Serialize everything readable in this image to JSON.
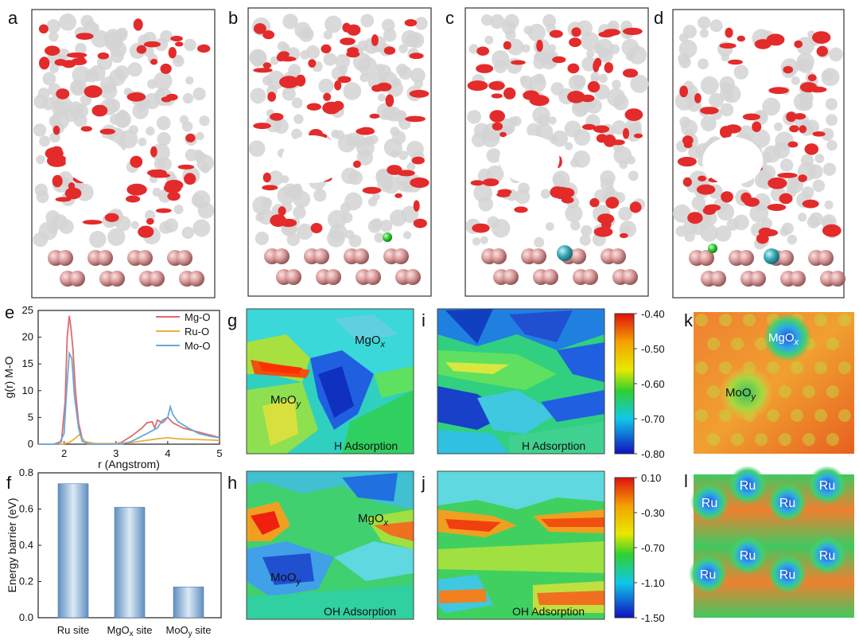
{
  "panel_labels": {
    "a": "a",
    "b": "b",
    "c": "c",
    "d": "d",
    "e": "e",
    "f": "f",
    "g": "g",
    "h": "h",
    "i": "i",
    "j": "j",
    "k": "k",
    "l": "l"
  },
  "colors": {
    "mgo": "#e06a6a",
    "ruo": "#e8b040",
    "moo": "#6aa8d8",
    "bar": "#8fb3d6",
    "red_cluster": "#e32b2b",
    "grey_cluster": "#d8d8d8",
    "ru_atom": "#d99a9a",
    "teal_atom": "#3aa8b8",
    "green_atom": "#33cc33"
  },
  "chart_data": [
    {
      "type": "line",
      "panel": "e",
      "title": "",
      "xlabel": "r (Angstrom)",
      "ylabel": "g(r) M-O",
      "xlim": [
        1.5,
        5
      ],
      "ylim": [
        0,
        25
      ],
      "xticks": [
        "2",
        "3",
        "4",
        "5"
      ],
      "yticks": [
        "0",
        "5",
        "10",
        "15",
        "20",
        "25"
      ],
      "legend_position": "top-right",
      "series": [
        {
          "name": "Mg-O",
          "x": [
            1.5,
            1.8,
            1.95,
            2.02,
            2.06,
            2.1,
            2.13,
            2.17,
            2.22,
            2.28,
            2.35,
            2.45,
            2.6,
            2.9,
            3.1,
            3.3,
            3.5,
            3.6,
            3.7,
            3.75,
            3.8,
            3.9,
            4.0,
            4.1,
            4.2,
            4.3,
            4.5,
            4.7,
            4.9,
            5.0
          ],
          "y": [
            0,
            0,
            0.5,
            8,
            20,
            24,
            22,
            18,
            10,
            4,
            1,
            0,
            0,
            0,
            0.3,
            1.5,
            3,
            4,
            4.2,
            3,
            4.5,
            4.0,
            5.0,
            4.0,
            3.5,
            3,
            2.5,
            2,
            1.5,
            1.2
          ]
        },
        {
          "name": "Ru-O",
          "x": [
            1.5,
            1.9,
            2.0,
            2.1,
            2.2,
            2.3,
            2.4,
            2.6,
            3.0,
            3.3,
            3.5,
            3.8,
            4.0,
            4.2,
            4.5,
            4.8,
            5.0
          ],
          "y": [
            0,
            0,
            0.1,
            0.3,
            1,
            1.8,
            0.5,
            0.1,
            0.1,
            0.3,
            0.6,
            1.0,
            1.2,
            1.0,
            0.9,
            0.8,
            0.7
          ]
        },
        {
          "name": "Mo-O",
          "x": [
            1.5,
            1.9,
            2.0,
            2.05,
            2.1,
            2.15,
            2.2,
            2.28,
            2.35,
            2.5,
            2.8,
            3.1,
            3.3,
            3.5,
            3.7,
            3.8,
            3.9,
            4.0,
            4.05,
            4.1,
            4.2,
            4.4,
            4.6,
            4.8,
            5.0
          ],
          "y": [
            0,
            0,
            2,
            10,
            17,
            16,
            9,
            3,
            0.5,
            0,
            0,
            0,
            0.5,
            1.5,
            2.5,
            3,
            4.5,
            5,
            7,
            5.5,
            4.2,
            3,
            2,
            1.5,
            1.2
          ]
        }
      ]
    },
    {
      "type": "bar",
      "panel": "f",
      "title": "",
      "xlabel": "",
      "ylabel": "Energy barrier (eV)",
      "categories": [
        "Ru site",
        "MgOx site",
        "MoOy site"
      ],
      "values": [
        0.74,
        0.61,
        0.17
      ],
      "ylim": [
        0,
        0.8
      ],
      "yticks": [
        "0.0",
        "0.2",
        "0.4",
        "0.6",
        "0.8"
      ]
    },
    {
      "type": "heatmap",
      "panel": "g",
      "caption": "H Adsorption",
      "regions": [
        {
          "base": "MgO",
          "sub": "x"
        },
        {
          "base": "MoO",
          "sub": "y"
        }
      ]
    },
    {
      "type": "heatmap",
      "panel": "i",
      "caption": "H Adsorption",
      "colorbar": {
        "min": -0.8,
        "max": -0.4,
        "ticks": [
          "-0.40",
          "-0.50",
          "-0.60",
          "-0.70",
          "-0.80"
        ]
      }
    },
    {
      "type": "heatmap",
      "panel": "h",
      "caption": "OH Adsorption",
      "regions": [
        {
          "base": "MgO",
          "sub": "x"
        },
        {
          "base": "MoO",
          "sub": "y"
        }
      ]
    },
    {
      "type": "heatmap",
      "panel": "j",
      "caption": "OH Adsorption",
      "colorbar": {
        "min": -1.5,
        "max": 0.1,
        "ticks": [
          "0.10",
          "-0.30",
          "-0.70",
          "-1.10",
          "-1.50"
        ]
      }
    },
    {
      "type": "heatmap",
      "panel": "k",
      "regions": [
        {
          "base": "MgO",
          "sub": "x"
        },
        {
          "base": "MoO",
          "sub": "y"
        }
      ]
    },
    {
      "type": "heatmap",
      "panel": "l",
      "site_label": "Ru",
      "site_count": 8
    }
  ]
}
